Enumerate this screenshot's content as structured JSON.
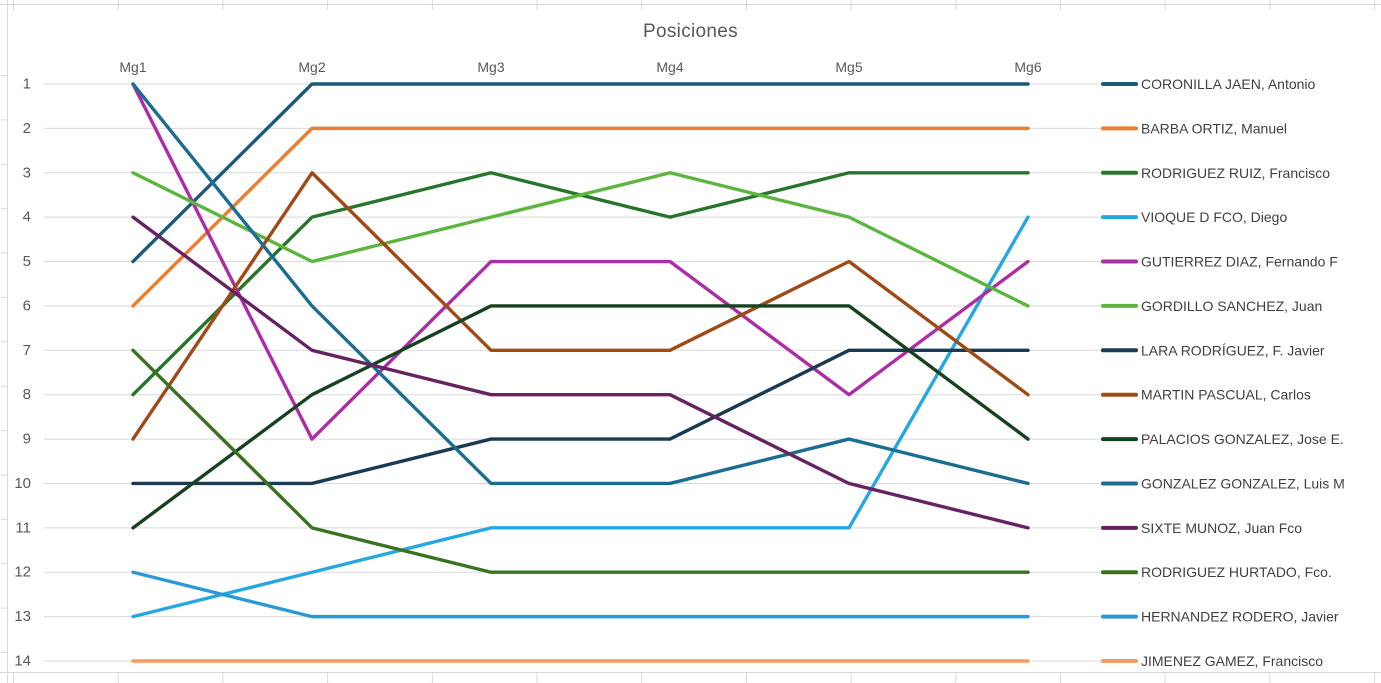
{
  "chart_data": {
    "type": "line",
    "subtype": "bump-rank-chart",
    "title": "Posiciones",
    "categories": [
      "Mg1",
      "Mg2",
      "Mg3",
      "Mg4",
      "Mg5",
      "Mg6"
    ],
    "y_ticks": [
      "1",
      "2",
      "3",
      "4",
      "5",
      "6",
      "7",
      "8",
      "9",
      "10",
      "11",
      "12",
      "13",
      "14"
    ],
    "y_axis_inverted": true,
    "ylim": [
      1,
      14
    ],
    "grid": "horizontal",
    "legend_position": "right",
    "series": [
      {
        "name": "CORONILLA JAEN, Antonio",
        "color": "#1A5A78",
        "values": [
          5,
          1,
          1,
          1,
          1,
          1
        ]
      },
      {
        "name": "BARBA ORTIZ, Manuel",
        "color": "#ED7D31",
        "values": [
          6,
          2,
          2,
          2,
          2,
          2
        ]
      },
      {
        "name": "RODRIGUEZ RUIZ, Francisco",
        "color": "#26752B",
        "values": [
          8,
          4,
          3,
          4,
          3,
          3
        ]
      },
      {
        "name": "VIOQUE D FCO, Diego",
        "color": "#27A7E2",
        "values": [
          13,
          12,
          11,
          11,
          11,
          4
        ]
      },
      {
        "name": "GUTIERREZ DIAZ, Fernando F",
        "color": "#AC2DA6",
        "values": [
          1,
          9,
          5,
          5,
          8,
          5
        ]
      },
      {
        "name": "GORDILLO SANCHEZ, Juan",
        "color": "#5CB53F",
        "values": [
          3,
          5,
          4,
          3,
          4,
          6
        ]
      },
      {
        "name": "LARA RODRÍGUEZ, F. Javier",
        "color": "#1A3A52",
        "values": [
          10,
          10,
          9,
          9,
          7,
          7
        ]
      },
      {
        "name": "MARTIN PASCUAL, Carlos",
        "color": "#9E4B17",
        "values": [
          9,
          3,
          7,
          7,
          5,
          8
        ]
      },
      {
        "name": "PALACIOS GONZALEZ, Jose E.",
        "color": "#174220",
        "values": [
          11,
          8,
          6,
          6,
          6,
          9
        ]
      },
      {
        "name": "GONZALEZ GONZALEZ, Luis M",
        "color": "#1B6E91",
        "values": [
          1,
          6,
          10,
          10,
          9,
          10
        ]
      },
      {
        "name": "SIXTE MUNOZ, Juan Fco",
        "color": "#662361",
        "values": [
          4,
          7,
          8,
          8,
          10,
          11
        ]
      },
      {
        "name": "RODRIGUEZ HURTADO, Fco.",
        "color": "#3A7222",
        "values": [
          7,
          11,
          12,
          12,
          12,
          12
        ]
      },
      {
        "name": "HERNANDEZ RODERO, Javier",
        "color": "#2D99D4",
        "values": [
          12,
          13,
          13,
          13,
          13,
          13
        ]
      },
      {
        "name": "JIMENEZ GAMEZ, Francisco",
        "color": "#F29C66",
        "values": [
          14,
          14,
          14,
          14,
          14,
          14
        ]
      }
    ]
  },
  "colors": {
    "gridline": "#D9D9D9",
    "worksheet_line": "#D9D9D9",
    "axis_text": "#595959",
    "title_text": "#595959",
    "legend_text": "#404040",
    "background": "#FFFFFF"
  }
}
